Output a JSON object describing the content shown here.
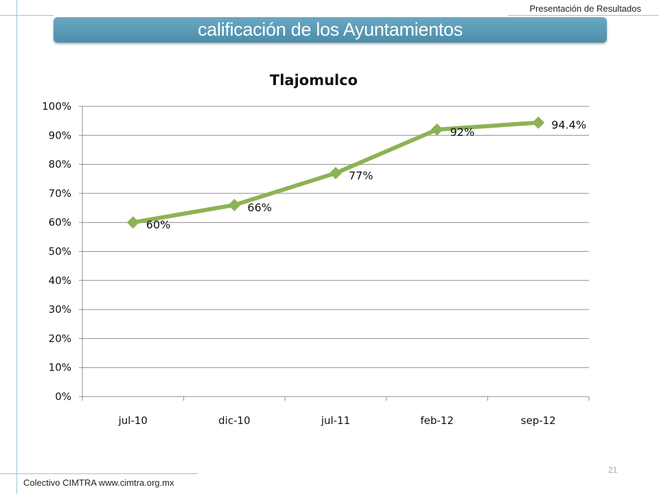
{
  "header": {
    "presentation_label": "Presentación de Resultados",
    "banner_title": "calificación de los  Ayuntamientos"
  },
  "footer": {
    "source": "Colectivo CIMTRA www.cimtra.org.mx",
    "page_number": "21"
  },
  "colors": {
    "banner": "#5a9bb8",
    "series_line": "#8db255",
    "gridline": "#8c8c8c"
  },
  "chart_data": {
    "type": "line",
    "title": "Tlajomulco",
    "categories": [
      "jul-10",
      "dic-10",
      "jul-11",
      "feb-12",
      "sep-12"
    ],
    "series": [
      {
        "values": [
          60,
          66,
          77,
          92,
          94.4
        ],
        "labels": [
          "60%",
          "66%",
          "77%",
          "92%",
          "94.4%"
        ]
      }
    ],
    "ylim": [
      0,
      100
    ],
    "yticks": [
      "0%",
      "10%",
      "20%",
      "30%",
      "40%",
      "50%",
      "60%",
      "70%",
      "80%",
      "90%",
      "100%"
    ],
    "grid": true,
    "marker": "diamond",
    "legend": "none"
  }
}
